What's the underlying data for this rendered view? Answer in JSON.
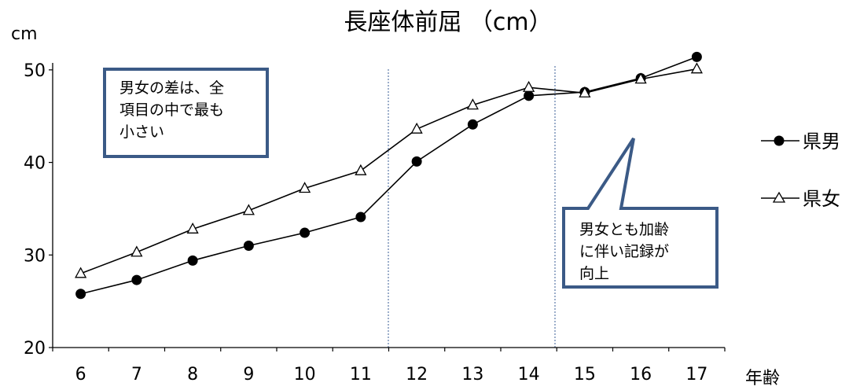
{
  "chart_data": {
    "type": "line",
    "title": "長座体前屈 （cm）",
    "ylabel": "cm",
    "xlabel": "年齢",
    "categories": [
      "6",
      "7",
      "8",
      "9",
      "10",
      "11",
      "12",
      "13",
      "14",
      "15",
      "16",
      "17"
    ],
    "ylim": [
      20,
      55
    ],
    "yticks": [
      20,
      30,
      40,
      50
    ],
    "series": [
      {
        "name": "県男",
        "marker": "filled-circle",
        "values": [
          25.8,
          27.3,
          29.4,
          31.0,
          32.4,
          34.1,
          40.1,
          44.1,
          47.2,
          47.6,
          49.1,
          51.4
        ]
      },
      {
        "name": "県女",
        "marker": "open-triangle",
        "values": [
          28.0,
          30.3,
          32.8,
          34.8,
          37.2,
          39.1,
          43.6,
          46.2,
          48.1,
          47.5,
          49.0,
          50.1
        ]
      }
    ],
    "grid": false,
    "legend_position": "right",
    "annotations": [
      {
        "text": "男女の差は、全\n項目の中で最も\n小さい"
      },
      {
        "text": "男女とも加齢\nに伴い記録が\n向上"
      }
    ],
    "colors": {
      "line": "#000000",
      "box_border": "#3b5a86",
      "divider": "#5b79a8"
    }
  }
}
